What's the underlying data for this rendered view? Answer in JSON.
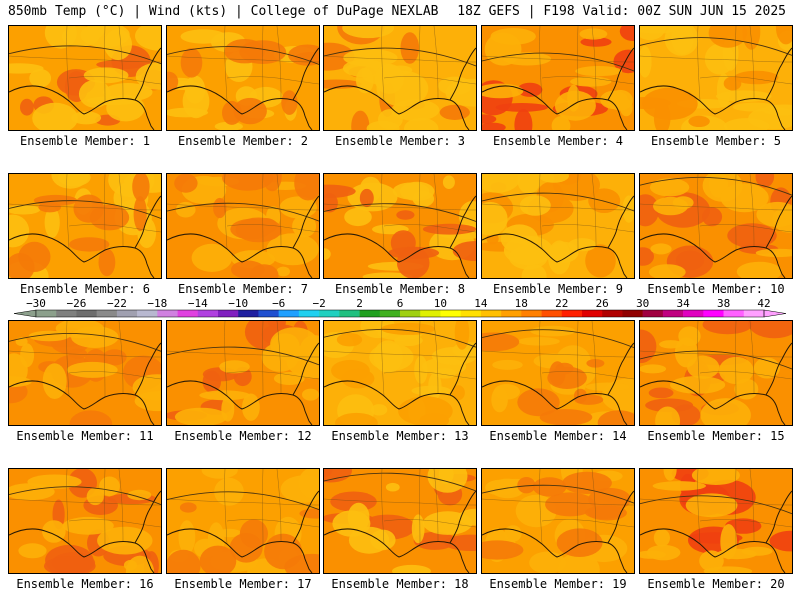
{
  "header": {
    "left": "850mb Temp (°C) | Wind (kts) | College of DuPage NEXLAB",
    "right": "18Z GEFS | F198 Valid: 00Z SUN JUN 15 2025"
  },
  "panels": [
    {
      "label": "Ensemble Member: 1",
      "base": "#fca000",
      "blobs": [
        [
          "#f06010",
          0.15
        ],
        [
          "#fdbf10",
          0.7
        ]
      ]
    },
    {
      "label": "Ensemble Member: 2",
      "base": "#fca000",
      "blobs": [
        [
          "#fdbf10",
          0.6
        ],
        [
          "#f57a08",
          0.2
        ]
      ]
    },
    {
      "label": "Ensemble Member: 3",
      "base": "#fdb008",
      "blobs": [
        [
          "#f57a08",
          0.2
        ],
        [
          "#fdbf10",
          0.6
        ]
      ]
    },
    {
      "label": "Ensemble Member: 4",
      "base": "#fa9000",
      "blobs": [
        [
          "#f04010",
          0.35
        ],
        [
          "#fdb008",
          0.5
        ]
      ]
    },
    {
      "label": "Ensemble Member: 5",
      "base": "#fdb008",
      "blobs": [
        [
          "#fdbf10",
          0.7
        ],
        [
          "#fa9000",
          0.2
        ]
      ]
    },
    {
      "label": "Ensemble Member: 6",
      "base": "#fca000",
      "blobs": [
        [
          "#fdbf10",
          0.5
        ],
        [
          "#f57a08",
          0.25
        ]
      ]
    },
    {
      "label": "Ensemble Member: 7",
      "base": "#fa9000",
      "blobs": [
        [
          "#fdb008",
          0.45
        ],
        [
          "#f57a08",
          0.3
        ]
      ]
    },
    {
      "label": "Ensemble Member: 8",
      "base": "#fa9000",
      "blobs": [
        [
          "#fdbf10",
          0.55
        ],
        [
          "#f06010",
          0.2
        ]
      ]
    },
    {
      "label": "Ensemble Member: 9",
      "base": "#fdb008",
      "blobs": [
        [
          "#fa9000",
          0.35
        ],
        [
          "#fdbf10",
          0.5
        ]
      ]
    },
    {
      "label": "Ensemble Member: 10",
      "base": "#fa9000",
      "blobs": [
        [
          "#f06010",
          0.3
        ],
        [
          "#fdb008",
          0.4
        ]
      ]
    },
    {
      "label": "Ensemble Member: 11",
      "base": "#fa9000",
      "blobs": [
        [
          "#f57a08",
          0.3
        ],
        [
          "#fdb008",
          0.35
        ]
      ]
    },
    {
      "label": "Ensemble Member: 12",
      "base": "#fa9000",
      "blobs": [
        [
          "#f06010",
          0.3
        ],
        [
          "#fdb008",
          0.4
        ]
      ]
    },
    {
      "label": "Ensemble Member: 13",
      "base": "#fdb008",
      "blobs": [
        [
          "#fdbf10",
          0.7
        ],
        [
          "#fca000",
          0.2
        ]
      ]
    },
    {
      "label": "Ensemble Member: 14",
      "base": "#fca000",
      "blobs": [
        [
          "#fdb008",
          0.5
        ],
        [
          "#f57a08",
          0.25
        ]
      ]
    },
    {
      "label": "Ensemble Member: 15",
      "base": "#fa9000",
      "blobs": [
        [
          "#f06010",
          0.35
        ],
        [
          "#fdb008",
          0.35
        ]
      ]
    },
    {
      "label": "Ensemble Member: 16",
      "base": "#fa9000",
      "blobs": [
        [
          "#f06010",
          0.3
        ],
        [
          "#fdb008",
          0.35
        ]
      ]
    },
    {
      "label": "Ensemble Member: 17",
      "base": "#fca000",
      "blobs": [
        [
          "#fdb008",
          0.6
        ],
        [
          "#f57a08",
          0.15
        ]
      ]
    },
    {
      "label": "Ensemble Member: 18",
      "base": "#fa9000",
      "blobs": [
        [
          "#f06010",
          0.35
        ],
        [
          "#fdbf10",
          0.35
        ]
      ]
    },
    {
      "label": "Ensemble Member: 19",
      "base": "#fca000",
      "blobs": [
        [
          "#fdb008",
          0.55
        ],
        [
          "#f57a08",
          0.2
        ]
      ]
    },
    {
      "label": "Ensemble Member: 20",
      "base": "#fa9000",
      "blobs": [
        [
          "#f04010",
          0.3
        ],
        [
          "#fdb008",
          0.4
        ]
      ]
    }
  ],
  "colorbar": {
    "labels": [
      "-30",
      "-26",
      "-22",
      "-18",
      "-14",
      "-10",
      "-6",
      "-2",
      "2",
      "6",
      "10",
      "14",
      "18",
      "22",
      "26",
      "30",
      "34",
      "38",
      "42"
    ],
    "colors": [
      "#8ca08c",
      "#7f807f",
      "#6e6e6e",
      "#8a8a8a",
      "#a0a0b0",
      "#b8b8d0",
      "#d080e0",
      "#e040e0",
      "#b040e0",
      "#8020c0",
      "#2020a0",
      "#2050d0",
      "#20a0ff",
      "#20d0f0",
      "#20d0c0",
      "#20c080",
      "#20a020",
      "#40b020",
      "#a0d010",
      "#e0f000",
      "#ffff00",
      "#ffe000",
      "#ffc000",
      "#ffa000",
      "#ff8000",
      "#ff5000",
      "#ff2000",
      "#e00000",
      "#b00000",
      "#900000",
      "#a00040",
      "#c00080",
      "#e000c0",
      "#ff00ff",
      "#ff60ff",
      "#ffa0ff"
    ]
  }
}
